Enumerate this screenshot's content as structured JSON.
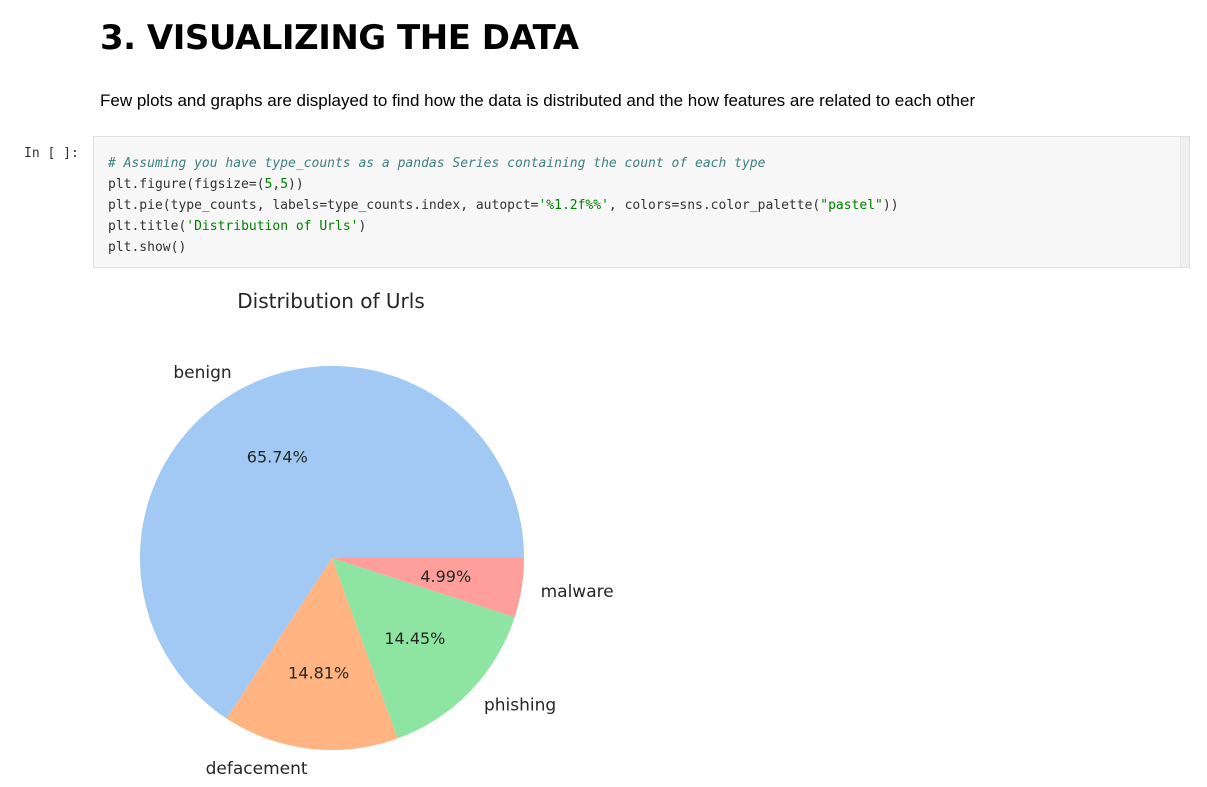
{
  "markdown": {
    "heading": "3. VISUALIZING THE DATA",
    "intro": "Few plots and graphs are displayed to find how the data is distributed and the how features are related to each other"
  },
  "cell": {
    "prompt": "In [ ]:",
    "code_lines": [
      "# Assuming you have type_counts as a pandas Series containing the count of each type",
      "plt.figure(figsize=(5,5))",
      "plt.pie(type_counts, labels=type_counts.index, autopct='%1.2f%%', colors=sns.color_palette(\"pastel\"))",
      "plt.title('Distribution of Urls')",
      "plt.show()"
    ]
  },
  "chart_data": {
    "type": "pie",
    "title": "Distribution of Urls",
    "categories": [
      "benign",
      "defacement",
      "phishing",
      "malware"
    ],
    "values": [
      65.74,
      14.81,
      14.45,
      4.99
    ],
    "value_labels": [
      "65.74%",
      "14.81%",
      "14.45%",
      "4.99%"
    ],
    "colors": [
      "#a1c9f4",
      "#ffb482",
      "#8de5a1",
      "#ff9f9b"
    ],
    "start_angle": 0,
    "direction": "counterclockwise"
  }
}
